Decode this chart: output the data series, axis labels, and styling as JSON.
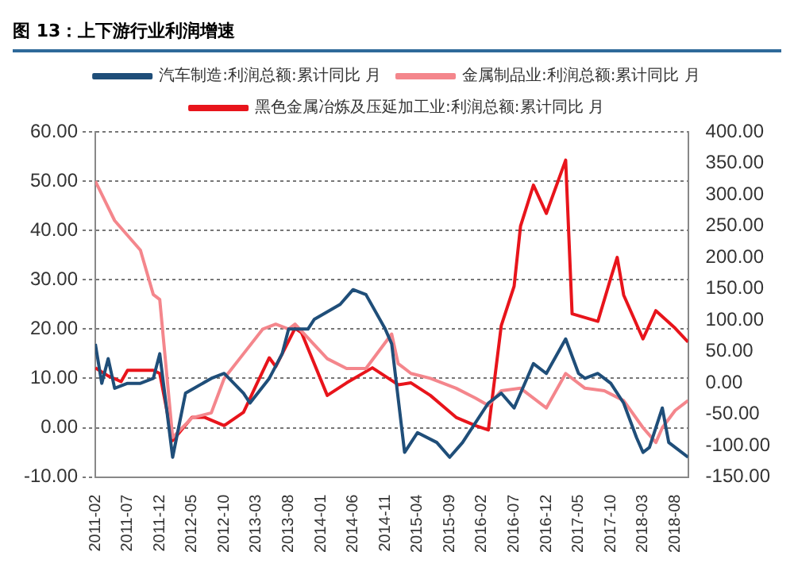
{
  "chart_data": {
    "type": "line",
    "title": "图 13：上下游行业利润增速",
    "xlim": [
      "2011-02",
      "2018-10"
    ],
    "xticks": [
      "2011-02",
      "2011-07",
      "2011-12",
      "2012-05",
      "2012-10",
      "2013-03",
      "2013-08",
      "2014-01",
      "2014-06",
      "2014-11",
      "2015-04",
      "2015-09",
      "2016-02",
      "2016-07",
      "2016-12",
      "2017-05",
      "2017-10",
      "2018-03",
      "2018-08"
    ],
    "ylim": [
      -10,
      60
    ],
    "yticks": [
      {
        "value": -10,
        "label": "-10.00"
      },
      {
        "value": 0,
        "label": "0.00"
      },
      {
        "value": 10,
        "label": "10.00"
      },
      {
        "value": 20,
        "label": "20.00"
      },
      {
        "value": 30,
        "label": "30.00"
      },
      {
        "value": 40,
        "label": "40.00"
      },
      {
        "value": 50,
        "label": "50.00"
      },
      {
        "value": 60,
        "label": "60.00"
      }
    ],
    "y2lim": [
      -150,
      400
    ],
    "y2ticks": [
      {
        "value": -150,
        "label": "-150.00"
      },
      {
        "value": -100,
        "label": "-100.00"
      },
      {
        "value": -50,
        "label": "-50.00"
      },
      {
        "value": 0,
        "label": "0.00"
      },
      {
        "value": 50,
        "label": "50.00"
      },
      {
        "value": 100,
        "label": "100.00"
      },
      {
        "value": 150,
        "label": "150.00"
      },
      {
        "value": 200,
        "label": "200.00"
      },
      {
        "value": 250,
        "label": "250.00"
      },
      {
        "value": 300,
        "label": "300.00"
      },
      {
        "value": 350,
        "label": "350.00"
      },
      {
        "value": 400,
        "label": "400.00"
      }
    ],
    "grid": "y",
    "legend": "top",
    "marker": "none",
    "line_style": "solid",
    "series": [
      {
        "name": "汽车制造:利润总额:累计同比 月",
        "color": "#1f4e79",
        "x": [
          "2011-02",
          "2011-03",
          "2011-04",
          "2011-05",
          "2011-07",
          "2011-09",
          "2011-11",
          "2011-12",
          "2012-02",
          "2012-04",
          "2012-08",
          "2012-10",
          "2013-01",
          "2013-02",
          "2013-05",
          "2013-07",
          "2013-08",
          "2013-11",
          "2013-12",
          "2014-04",
          "2014-06",
          "2014-08",
          "2014-11",
          "2014-12",
          "2015-02",
          "2015-04",
          "2015-07",
          "2015-09",
          "2015-11",
          "2016-03",
          "2016-05",
          "2016-07",
          "2016-10",
          "2016-12",
          "2017-03",
          "2017-05",
          "2017-06",
          "2017-08",
          "2017-10",
          "2017-12",
          "2018-02",
          "2018-03",
          "2018-04",
          "2018-06",
          "2018-07",
          "2018-10"
        ],
        "values": [
          17,
          9,
          14,
          8,
          9,
          9,
          10,
          15,
          -6,
          7,
          10,
          11,
          7,
          5,
          10,
          15,
          20,
          20,
          22,
          25,
          28,
          27,
          20,
          17,
          -5,
          -1,
          -3,
          -6,
          -3,
          5,
          7,
          4,
          13,
          11,
          18,
          11,
          10,
          11,
          9,
          5,
          -2,
          -5,
          -4,
          4,
          -3,
          -6
        ]
      },
      {
        "name": "金属制品业:利润总额:累计同比 月",
        "color": "#f4868c",
        "x": [
          "2011-02",
          "2011-05",
          "2011-09",
          "2011-11",
          "2011-12",
          "2012-02",
          "2012-05",
          "2012-08",
          "2012-10",
          "2013-01",
          "2013-04",
          "2013-06",
          "2013-08",
          "2013-09",
          "2014-02",
          "2014-05",
          "2014-08",
          "2014-12",
          "2015-01",
          "2015-03",
          "2015-06",
          "2015-10",
          "2016-01",
          "2016-03",
          "2016-05",
          "2016-08",
          "2016-12",
          "2017-03",
          "2017-06",
          "2017-09",
          "2017-12",
          "2018-03",
          "2018-05",
          "2018-06",
          "2018-08",
          "2018-10"
        ],
        "values": [
          50,
          42,
          36,
          27,
          26,
          -2,
          2,
          3,
          10,
          15,
          20,
          21,
          20,
          21,
          14,
          12,
          12,
          19,
          13,
          11,
          10,
          8,
          6,
          4.5,
          7.5,
          8,
          4,
          11,
          8,
          7.5,
          5.5,
          0,
          -3,
          0,
          3.5,
          5.5
        ]
      },
      {
        "name": "黑色金属冶炼及压延加工业:利润总额:累计同比 月",
        "color": "#e8141b",
        "axis": "y2",
        "x": [
          "2011-02",
          "2011-04",
          "2011-06",
          "2011-07",
          "2011-11",
          "2011-12",
          "2012-02",
          "2012-05",
          "2012-07",
          "2012-10",
          "2013-01",
          "2013-03",
          "2013-05",
          "2013-06",
          "2013-09",
          "2013-10",
          "2014-02",
          "2014-05",
          "2014-09",
          "2015-01",
          "2015-03",
          "2015-06",
          "2015-10",
          "2016-01",
          "2016-03",
          "2016-05",
          "2016-07",
          "2016-08",
          "2016-10",
          "2016-12",
          "2017-03",
          "2017-04",
          "2017-08",
          "2017-10",
          "2017-11",
          "2017-12",
          "2018-03",
          "2018-05",
          "2018-08",
          "2018-10"
        ],
        "values": [
          24,
          11,
          2,
          20,
          20,
          15,
          -92,
          -55,
          -55,
          -68,
          -47,
          -3,
          40,
          26,
          87,
          80,
          -20,
          0,
          24,
          -3,
          0,
          -20,
          -55,
          -68,
          -75,
          91,
          154,
          250,
          315,
          270,
          355,
          110,
          98,
          167,
          200,
          140,
          70,
          115,
          87,
          65
        ]
      }
    ]
  }
}
